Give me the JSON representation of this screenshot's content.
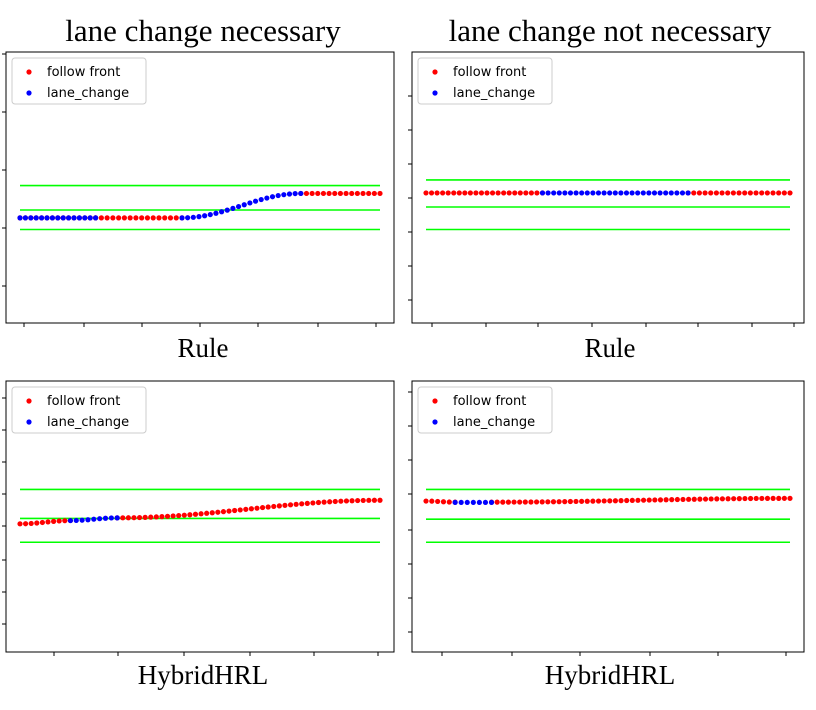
{
  "column_titles": [
    "lane change necessary",
    "lane change not necessary"
  ],
  "row_labels": [
    "Rule",
    "HybridHRL"
  ],
  "colors": {
    "follow_front": "#ff0000",
    "lane_change": "#0000ff",
    "lane_boundary": "#00ff00",
    "axes": "#000000"
  },
  "chart_data": [
    {
      "type": "scatter",
      "column": "lane change necessary",
      "method": "Rule",
      "xlim": [
        0,
        100
      ],
      "ylim": [
        0,
        100
      ],
      "legend": "top-left",
      "grid": false,
      "lane_lines": [
        50.7,
        41.7,
        34.5
      ],
      "series": [
        {
          "name": "follow front",
          "segments": [
            {
              "x": [
                0,
                21
              ],
              "y": [
                38.8,
                38.8
              ]
            },
            {
              "x": [
                21,
                45
              ],
              "y": [
                38.8,
                38.8
              ]
            },
            {
              "x": [
                78,
                100
              ],
              "y": [
                47.8,
                47.8
              ]
            }
          ]
        },
        {
          "name": "lane_change",
          "segments": [
            {
              "x": [
                0,
                21
              ],
              "y": [
                38.8,
                38.8
              ]
            },
            {
              "x": [
                45,
                78
              ],
              "y": [
                38.8,
                47.8
              ]
            }
          ]
        }
      ]
    },
    {
      "type": "scatter",
      "column": "lane change not necessary",
      "method": "Rule",
      "xlim": [
        0,
        100
      ],
      "ylim": [
        0,
        100
      ],
      "legend": "top-left",
      "grid": false,
      "lane_lines": [
        52.8,
        42.8,
        34.5
      ],
      "series": [
        {
          "name": "follow front",
          "segments": [
            {
              "x": [
                0,
                32
              ],
              "y": [
                48,
                48
              ]
            },
            {
              "x": [
                72,
                100
              ],
              "y": [
                48,
                48
              ]
            }
          ]
        },
        {
          "name": "lane_change",
          "segments": [
            {
              "x": [
                32,
                72
              ],
              "y": [
                48,
                48
              ]
            }
          ]
        }
      ]
    },
    {
      "type": "scatter",
      "column": "lane change necessary",
      "method": "HybridHRL",
      "xlim": [
        0,
        100
      ],
      "ylim": [
        0,
        100
      ],
      "legend": "top-left",
      "grid": false,
      "lane_lines": [
        60,
        49.3,
        40.5
      ],
      "series": [
        {
          "name": "follow front",
          "segments": [
            {
              "x": [
                0,
                14
              ],
              "y": [
                47.3,
                48.5
              ]
            },
            {
              "x": [
                27,
                100
              ],
              "y": [
                49.5,
                56
              ]
            }
          ]
        },
        {
          "name": "lane_change",
          "segments": [
            {
              "x": [
                14,
                27
              ],
              "y": [
                48.5,
                49.5
              ]
            }
          ]
        }
      ]
    },
    {
      "type": "scatter",
      "column": "lane change not necessary",
      "method": "HybridHRL",
      "xlim": [
        0,
        100
      ],
      "ylim": [
        0,
        100
      ],
      "legend": "top-left",
      "grid": false,
      "lane_lines": [
        60,
        49,
        40.5
      ],
      "series": [
        {
          "name": "follow front",
          "segments": [
            {
              "x": [
                0,
                8
              ],
              "y": [
                55.7,
                55.3
              ]
            },
            {
              "x": [
                18,
                100
              ],
              "y": [
                55.3,
                56.7
              ]
            }
          ]
        },
        {
          "name": "lane_change",
          "segments": [
            {
              "x": [
                8,
                18
              ],
              "y": [
                55.2,
                55.2
              ]
            }
          ]
        }
      ]
    }
  ]
}
